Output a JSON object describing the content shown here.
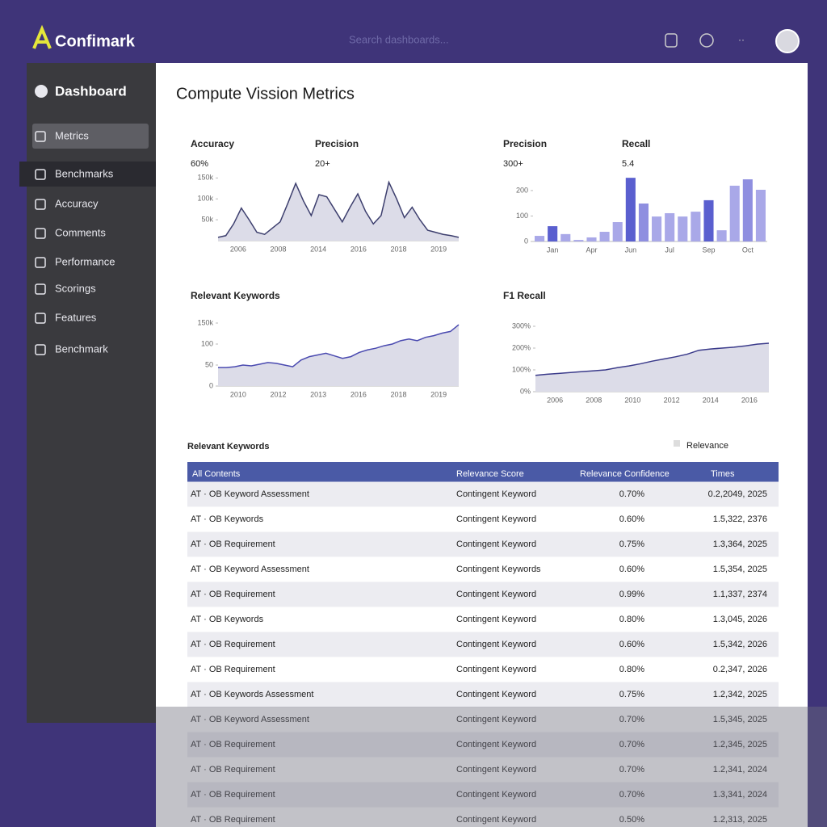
{
  "header": {
    "logo": "Confimark",
    "search": "Search dashboards..."
  },
  "sidebar": {
    "title": "Dashboard",
    "items": [
      "Metrics",
      "Benchmarks",
      "Accuracy",
      "Comments",
      "Performance",
      "Scorings",
      "Features",
      "Benchmark"
    ]
  },
  "page_title": "Compute Vission Metrics",
  "charts": [
    {
      "type": "area",
      "stats": [
        {
          "name": "Accuracy",
          "value": "60%"
        },
        {
          "name": "Precision",
          "value": "20+"
        }
      ],
      "ylim": [
        0,
        170
      ],
      "yticks": [
        {
          "value": 50,
          "label": "50k"
        },
        {
          "value": 100,
          "label": "100k"
        },
        {
          "value": 150,
          "label": "150k"
        }
      ],
      "x_labels": [
        "2006",
        "2008",
        "2014",
        "2016",
        "2018",
        "2019"
      ],
      "color": "#3d3f6e",
      "values": [
        8,
        12,
        40,
        78,
        50,
        20,
        15,
        30,
        45,
        90,
        137,
        95,
        60,
        110,
        105,
        75,
        45,
        80,
        112,
        70,
        40,
        60,
        140,
        100,
        55,
        80,
        50,
        25,
        20,
        15,
        12,
        8
      ]
    },
    {
      "type": "bar",
      "stats": [
        {
          "name": "Precision",
          "value": "300+"
        },
        {
          "name": "Recall",
          "value": "5.4"
        }
      ],
      "ylim": [
        0,
        260
      ],
      "yticks": [
        0,
        100,
        200
      ],
      "x_labels": [
        "Jan",
        "Apr",
        "Jun",
        "Jul",
        "Sep",
        "Oct"
      ],
      "values": [
        22,
        60,
        29,
        6,
        16,
        38,
        76,
        250,
        149,
        98,
        111,
        98,
        117,
        162,
        44,
        219,
        244,
        203
      ],
      "colors": [
        "#a9a8e8",
        "#5a5fcf",
        "#a9a8e8",
        "#a9a8e8",
        "#a9a8e8",
        "#a9a8e8",
        "#a9a8e8",
        "#5a5fcf",
        "#8f8fe0",
        "#a9a8e8",
        "#a9a8e8",
        "#a9a8e8",
        "#a9a8e8",
        "#5a5fcf",
        "#a9a8e8",
        "#a9a8e8",
        "#8f8fe0",
        "#a9a8e8"
      ]
    },
    {
      "type": "area",
      "stats": [
        {
          "name": "Relevant Keywords"
        }
      ],
      "ylim": [
        0,
        150
      ],
      "yticks": [
        0,
        50,
        100,
        {
          "value": 150,
          "label": "150k"
        }
      ],
      "x_labels": [
        "2010",
        "2012",
        "2013",
        "2016",
        "2018",
        "2019"
      ],
      "color": "#4a4ab0",
      "values": [
        44,
        44,
        46,
        50,
        48,
        52,
        56,
        54,
        50,
        46,
        62,
        70,
        74,
        78,
        72,
        66,
        70,
        80,
        86,
        90,
        96,
        100,
        108,
        112,
        108,
        116,
        120,
        126,
        130,
        146
      ]
    },
    {
      "type": "area",
      "stats": [
        {
          "name": "F1 Recall"
        }
      ],
      "ylim": [
        0,
        300
      ],
      "yticks": [
        {
          "value": 0,
          "label": "0%"
        },
        {
          "value": 100,
          "label": "100%"
        },
        {
          "value": 200,
          "label": "200%"
        },
        {
          "value": 300,
          "label": "300%"
        }
      ],
      "x_labels": [
        "2006",
        "2008",
        "2010",
        "2012",
        "2014",
        "2016"
      ],
      "color": "#3a3a8a",
      "values": [
        75,
        80,
        84,
        88,
        92,
        96,
        100,
        110,
        118,
        128,
        140,
        150,
        160,
        172,
        190,
        196,
        200,
        204,
        210,
        218,
        222
      ]
    }
  ],
  "table": {
    "title": "Relevant Keywords",
    "filter": "Relevance",
    "columns": [
      "All Contents",
      "Relevance Score",
      "Relevance Confidence",
      "Times"
    ],
    "rows": [
      [
        "AT · OB Keyword Assessment",
        "Contingent Keyword",
        "0.70%",
        "0.2,2049, 2025"
      ],
      [
        "AT · OB Keywords",
        "Contingent Keyword",
        "0.60%",
        "1.5,322, 2376"
      ],
      [
        "AT · OB Requirement",
        "Contingent Keyword",
        "0.75%",
        "1.3,364, 2025"
      ],
      [
        "AT · OB Keyword Assessment",
        "Contingent Keywords",
        "0.60%",
        "1.5,354, 2025"
      ],
      [
        "AT · OB Requirement",
        "Contingent Keyword",
        "0.99%",
        "1.1,337, 2374"
      ],
      [
        "AT · OB Keywords",
        "Contingent Keyword",
        "0.80%",
        "1.3,045, 2026"
      ],
      [
        "AT · OB Requirement",
        "Contingent Keyword",
        "0.60%",
        "1.5,342, 2026"
      ],
      [
        "AT · OB Requirement",
        "Contingent Keyword",
        "0.80%",
        "0.2,347, 2026"
      ],
      [
        "AT · OB Keywords Assessment",
        "Contingent Keyword",
        "0.75%",
        "1.2,342, 2025"
      ],
      [
        "AT · OB Keyword Assessment",
        "Contingent Keyword",
        "0.70%",
        "1.5,345, 2025"
      ],
      [
        "AT · OB Requirement",
        "Contingent Keyword",
        "0.70%",
        "1.2,345, 2025"
      ],
      [
        "AT · OB Requirement",
        "Contingent Keyword",
        "0.70%",
        "1.2,341, 2024"
      ],
      [
        "AT · OB Requirement",
        "Contingent Keyword",
        "0.70%",
        "1.3,341, 2024"
      ],
      [
        "AT · OB Requirement",
        "Contingent Keyword",
        "0.50%",
        "1.2,313, 2025"
      ]
    ]
  }
}
